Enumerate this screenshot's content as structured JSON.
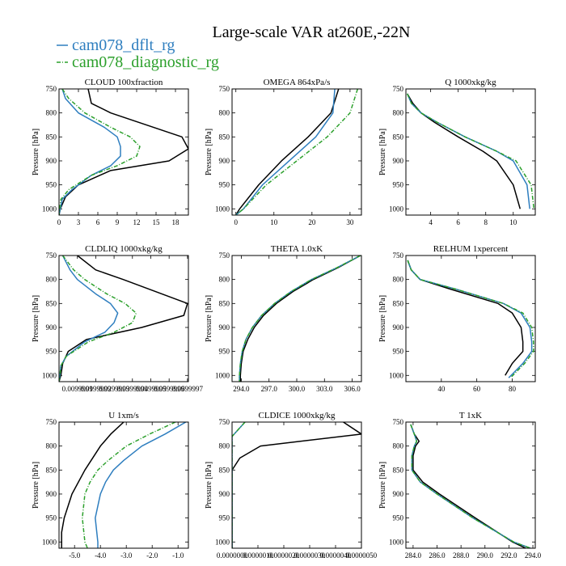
{
  "title": "Large-scale VAR at260E,-22N",
  "colors": {
    "black": "#000000",
    "blue": "#2e7ebf",
    "green": "#2ca02c"
  },
  "legend": [
    {
      "name": "cam078_dflt_rg",
      "color": "#2e7ebf",
      "dash": false
    },
    {
      "name": "cam078_diagnostic_rg",
      "color": "#2ca02c",
      "dash": true
    }
  ],
  "chart_data": [
    {
      "type": "line",
      "title": "CLOUD  100xfraction",
      "ylabel": "Pressure [hPa]",
      "xlim": [
        0,
        20
      ],
      "ylim": [
        750,
        1013
      ],
      "xticks": [
        0,
        3,
        6,
        9,
        12,
        15,
        18
      ],
      "xtick_labels": [
        "0",
        "3",
        "6",
        "9",
        "12",
        "15",
        "18"
      ],
      "yticks": [
        750,
        800,
        850,
        900,
        950,
        1000
      ],
      "ytick_labels": [
        "750",
        "800",
        "850",
        "900",
        "950",
        "1000"
      ],
      "series": [
        {
          "color": "#000000",
          "dash": false,
          "p": [
            750,
            780,
            800,
            850,
            875,
            900,
            920,
            950,
            975,
            1000,
            1013
          ],
          "x": [
            4.5,
            5,
            8,
            19,
            20,
            17,
            8,
            3,
            1,
            0.2,
            0
          ]
        },
        {
          "color": "#2e7ebf",
          "dash": false,
          "p": [
            750,
            770,
            800,
            830,
            850,
            870,
            890,
            910,
            930,
            960,
            980,
            1000,
            1013
          ],
          "x": [
            0.5,
            1,
            3,
            7,
            9,
            9.5,
            9.5,
            8,
            5,
            2,
            0.5,
            0.2,
            0
          ]
        },
        {
          "color": "#2ca02c",
          "dash": true,
          "p": [
            750,
            770,
            800,
            830,
            850,
            870,
            890,
            910,
            930,
            960,
            980,
            1000,
            1013
          ],
          "x": [
            0.5,
            1.5,
            4,
            8,
            11,
            12.5,
            12,
            9,
            5,
            1.5,
            0.3,
            0.1,
            0
          ]
        }
      ]
    },
    {
      "type": "line",
      "title": "OMEGA  864xPa/s",
      "ylabel": "Pressure [hPa]",
      "xlim": [
        -1,
        33
      ],
      "ylim": [
        750,
        1013
      ],
      "xticks": [
        0,
        10,
        20,
        30
      ],
      "xtick_labels": [
        "0",
        "10",
        "20",
        "30"
      ],
      "yticks": [
        750,
        800,
        850,
        900,
        950,
        1000
      ],
      "ytick_labels": [
        "750",
        "800",
        "850",
        "900",
        "950",
        "1000"
      ],
      "series": [
        {
          "color": "#000000",
          "dash": false,
          "p": [
            750,
            800,
            850,
            900,
            950,
            1000,
            1013
          ],
          "x": [
            27,
            25,
            19,
            12,
            6,
            1,
            0
          ]
        },
        {
          "color": "#2e7ebf",
          "dash": false,
          "p": [
            750,
            800,
            850,
            900,
            950,
            1000,
            1013
          ],
          "x": [
            26,
            25.5,
            21,
            14,
            7,
            2,
            0
          ]
        },
        {
          "color": "#2ca02c",
          "dash": true,
          "p": [
            750,
            800,
            850,
            900,
            950,
            1000,
            1013
          ],
          "x": [
            32,
            30,
            24,
            16,
            8,
            2,
            0
          ]
        }
      ]
    },
    {
      "type": "line",
      "title": "Q  1000xkg/kg",
      "ylabel": "Pressure [hPa]",
      "xlim": [
        2.2,
        11.6
      ],
      "ylim": [
        750,
        1013
      ],
      "xticks": [
        4,
        6,
        8,
        10
      ],
      "xtick_labels": [
        "4",
        "6",
        "8",
        "10"
      ],
      "yticks": [
        750,
        800,
        850,
        900,
        950,
        1000
      ],
      "ytick_labels": [
        "750",
        "800",
        "850",
        "900",
        "950",
        "1000"
      ],
      "series": [
        {
          "color": "#000000",
          "dash": false,
          "p": [
            760,
            780,
            800,
            820,
            850,
            880,
            900,
            950,
            1000
          ],
          "x": [
            2.3,
            2.7,
            3.3,
            4.3,
            6,
            7.8,
            8.8,
            10,
            10.5
          ]
        },
        {
          "color": "#2e7ebf",
          "dash": false,
          "p": [
            760,
            780,
            800,
            820,
            850,
            880,
            900,
            950,
            1000
          ],
          "x": [
            2.3,
            2.6,
            3.3,
            4.5,
            6.5,
            8.8,
            10,
            11,
            11.2
          ]
        },
        {
          "color": "#2ca02c",
          "dash": true,
          "p": [
            760,
            780,
            800,
            820,
            850,
            880,
            900,
            950,
            1000
          ],
          "x": [
            2.3,
            2.6,
            3.3,
            4.5,
            6.5,
            8.8,
            10.2,
            11.3,
            11.5
          ]
        }
      ]
    },
    {
      "type": "line",
      "title": "CLDLIQ  1000xkg/kg",
      "ylabel": "Pressure [hPa]",
      "xlim": [
        0,
        0.0705
      ],
      "ylim": [
        750,
        1013
      ],
      "xticks": [
        0.01,
        0.02,
        0.03,
        0.04,
        0.05,
        0.06,
        0.07
      ],
      "xtick_labels": [
        "0.0099999",
        "0.0199999",
        "0.0299999",
        "0.0399999",
        "0.0499999",
        "0.0599999",
        "0.0699997"
      ],
      "yticks": [
        750,
        800,
        850,
        900,
        950,
        1000
      ],
      "ytick_labels": [
        "750",
        "800",
        "850",
        "900",
        "950",
        "1000"
      ],
      "series": [
        {
          "color": "#000000",
          "dash": false,
          "p": [
            750,
            780,
            800,
            850,
            875,
            900,
            925,
            950,
            975,
            1000,
            1013
          ],
          "x": [
            0.01,
            0.02,
            0.035,
            0.07,
            0.068,
            0.045,
            0.015,
            0.005,
            0.002,
            0.001,
            0
          ]
        },
        {
          "color": "#2e7ebf",
          "dash": false,
          "p": [
            750,
            780,
            800,
            830,
            850,
            870,
            890,
            910,
            930,
            960,
            980,
            1000,
            1013
          ],
          "x": [
            0.002,
            0.006,
            0.01,
            0.02,
            0.028,
            0.032,
            0.03,
            0.025,
            0.014,
            0.004,
            0.001,
            0.0005,
            0
          ]
        },
        {
          "color": "#2ca02c",
          "dash": true,
          "p": [
            750,
            780,
            800,
            830,
            850,
            870,
            890,
            910,
            930,
            960,
            980,
            1000,
            1013
          ],
          "x": [
            0.002,
            0.008,
            0.014,
            0.026,
            0.036,
            0.042,
            0.04,
            0.03,
            0.016,
            0.004,
            0.001,
            0.0005,
            0
          ]
        }
      ]
    },
    {
      "type": "line",
      "title": "THETA  1.0xK",
      "ylabel": "Pressure [hPa]",
      "xlim": [
        293,
        307
      ],
      "ylim": [
        750,
        1013
      ],
      "xticks": [
        294,
        297,
        300,
        303,
        306
      ],
      "xtick_labels": [
        "294.0",
        "297.0",
        "300.0",
        "303.0",
        "306.0"
      ],
      "yticks": [
        750,
        800,
        850,
        900,
        950,
        1000
      ],
      "ytick_labels": [
        "750",
        "800",
        "850",
        "900",
        "950",
        "1000"
      ],
      "series": [
        {
          "color": "#000000",
          "dash": false,
          "p": [
            750,
            775,
            800,
            825,
            850,
            875,
            900,
            925,
            950,
            975,
            1000,
            1013
          ],
          "x": [
            306.9,
            304.5,
            301.8,
            299.6,
            297.8,
            296.4,
            295.4,
            294.7,
            294.2,
            294,
            293.9,
            293.9
          ]
        },
        {
          "color": "#2e7ebf",
          "dash": false,
          "p": [
            750,
            775,
            800,
            825,
            850,
            875,
            900,
            925,
            950,
            975,
            1000,
            1013
          ],
          "x": [
            306.9,
            304.4,
            301.6,
            299.4,
            297.6,
            296.2,
            295.2,
            294.5,
            294.1,
            293.9,
            293.8,
            293.8
          ]
        },
        {
          "color": "#2ca02c",
          "dash": true,
          "p": [
            750,
            775,
            800,
            825,
            850,
            875,
            900,
            925,
            950,
            975,
            1000,
            1013
          ],
          "x": [
            306.9,
            304.4,
            301.6,
            299.4,
            297.6,
            296.2,
            295.2,
            294.5,
            294.1,
            293.9,
            293.8,
            293.8
          ]
        }
      ]
    },
    {
      "type": "line",
      "title": "RELHUM  1xpercent",
      "ylabel": "Pressure [hPa]",
      "xlim": [
        20,
        93
      ],
      "ylim": [
        750,
        1013
      ],
      "xticks": [
        40,
        60,
        80
      ],
      "xtick_labels": [
        "40",
        "60",
        "80"
      ],
      "yticks": [
        750,
        800,
        850,
        900,
        950,
        1000
      ],
      "ytick_labels": [
        "750",
        "800",
        "850",
        "900",
        "950",
        "1000"
      ],
      "series": [
        {
          "color": "#000000",
          "dash": false,
          "p": [
            760,
            780,
            800,
            820,
            850,
            870,
            900,
            930,
            950,
            975,
            1000
          ],
          "x": [
            21,
            23,
            28,
            45,
            72,
            80,
            85,
            86,
            86,
            80,
            76
          ]
        },
        {
          "color": "#2e7ebf",
          "dash": false,
          "p": [
            760,
            780,
            800,
            820,
            850,
            870,
            900,
            930,
            950,
            975,
            1005
          ],
          "x": [
            21,
            23,
            28,
            48,
            75,
            85,
            90,
            91,
            91,
            86,
            78
          ]
        },
        {
          "color": "#2ca02c",
          "dash": true,
          "p": [
            760,
            780,
            800,
            820,
            850,
            870,
            900,
            930,
            950,
            975,
            1005
          ],
          "x": [
            21,
            23,
            28,
            48,
            75,
            86,
            91,
            92,
            92,
            87,
            79
          ]
        }
      ]
    },
    {
      "type": "line",
      "title": "U  1xm/s",
      "ylabel": "Pressure [hPa]",
      "xlim": [
        -5.6,
        -0.6
      ],
      "ylim": [
        750,
        1013
      ],
      "xticks": [
        -5,
        -4,
        -3,
        -2,
        -1
      ],
      "xtick_labels": [
        "-5.0",
        "-4.0",
        "-3.0",
        "-2.0",
        "-1.0"
      ],
      "yticks": [
        750,
        800,
        850,
        900,
        950,
        1000
      ],
      "ytick_labels": [
        "750",
        "800",
        "850",
        "900",
        "950",
        "1000"
      ],
      "series": [
        {
          "color": "#000000",
          "dash": false,
          "p": [
            750,
            775,
            800,
            850,
            900,
            950,
            980,
            1013
          ],
          "x": [
            -3.1,
            -3.6,
            -4,
            -4.6,
            -5.1,
            -5.4,
            -5.5,
            -5.5
          ]
        },
        {
          "color": "#2e7ebf",
          "dash": false,
          "p": [
            750,
            775,
            800,
            830,
            850,
            875,
            900,
            950,
            1000,
            1013
          ],
          "x": [
            -0.7,
            -1.5,
            -2.4,
            -3.1,
            -3.5,
            -3.8,
            -4,
            -4.2,
            -4.1,
            -4.1
          ]
        },
        {
          "color": "#2ca02c",
          "dash": true,
          "p": [
            750,
            775,
            800,
            830,
            850,
            875,
            900,
            950,
            1000,
            1013
          ],
          "x": [
            -1.1,
            -2.1,
            -3,
            -3.7,
            -4.1,
            -4.4,
            -4.6,
            -4.7,
            -4.6,
            -4.5
          ]
        }
      ]
    },
    {
      "type": "line",
      "title": "CLDICE  1000xkg/kg",
      "ylabel": "Pressure [hPa]",
      "xlim": [
        0,
        5e-06
      ],
      "ylim": [
        750,
        1013
      ],
      "xticks": [
        0,
        1e-06,
        2e-06,
        3e-06,
        4e-06,
        5e-06
      ],
      "xtick_labels": [
        "0.0000000",
        "0.0000010",
        "0.0000020",
        "0.0000030",
        "0.0000040",
        "0.0000050"
      ],
      "yticks": [
        750,
        800,
        850,
        900,
        950,
        1000
      ],
      "ytick_labels": [
        "750",
        "800",
        "850",
        "900",
        "950",
        "1000"
      ],
      "series": [
        {
          "color": "#000000",
          "dash": false,
          "p": [
            750,
            775,
            800,
            825,
            850,
            1013
          ],
          "x": [
            4.3e-06,
            5e-06,
            1.1e-06,
            3e-07,
            0,
            0
          ]
        },
        {
          "color": "#2e7ebf",
          "dash": false,
          "p": [
            750,
            780,
            790,
            1013
          ],
          "x": [
            5e-07,
            0,
            0,
            0
          ]
        },
        {
          "color": "#2ca02c",
          "dash": true,
          "p": [
            750,
            780,
            790,
            1013
          ],
          "x": [
            5e-07,
            0,
            0,
            0
          ]
        }
      ]
    },
    {
      "type": "line",
      "title": "T  1xK",
      "ylabel": "Pressure [hPa]",
      "xlim": [
        283.4,
        294.2
      ],
      "ylim": [
        750,
        1013
      ],
      "xticks": [
        284,
        286,
        288,
        290,
        292,
        294
      ],
      "xtick_labels": [
        "284.0",
        "286.0",
        "288.0",
        "290.0",
        "292.0",
        "294.0"
      ],
      "yticks": [
        750,
        800,
        850,
        900,
        950,
        1000
      ],
      "ytick_labels": [
        "750",
        "800",
        "850",
        "900",
        "950",
        "1000"
      ],
      "series": [
        {
          "color": "#000000",
          "dash": false,
          "p": [
            755,
            775,
            790,
            800,
            820,
            850,
            875,
            900,
            950,
            1000,
            1013
          ],
          "x": [
            283.8,
            284.1,
            284.5,
            284.2,
            284,
            284,
            284.8,
            286.2,
            289.2,
            292.3,
            293.4
          ]
        },
        {
          "color": "#2e7ebf",
          "dash": false,
          "p": [
            755,
            775,
            790,
            800,
            820,
            850,
            875,
            900,
            950,
            1000,
            1013
          ],
          "x": [
            283.8,
            284.1,
            284.3,
            284.1,
            283.9,
            283.9,
            284.6,
            286,
            289,
            292.4,
            293.8
          ]
        },
        {
          "color": "#2ca02c",
          "dash": true,
          "p": [
            755,
            775,
            790,
            800,
            820,
            850,
            875,
            900,
            950,
            1000,
            1013
          ],
          "x": [
            283.8,
            284.1,
            284.3,
            284.1,
            283.9,
            283.9,
            284.6,
            286,
            289,
            292.4,
            293.8
          ]
        }
      ]
    }
  ]
}
